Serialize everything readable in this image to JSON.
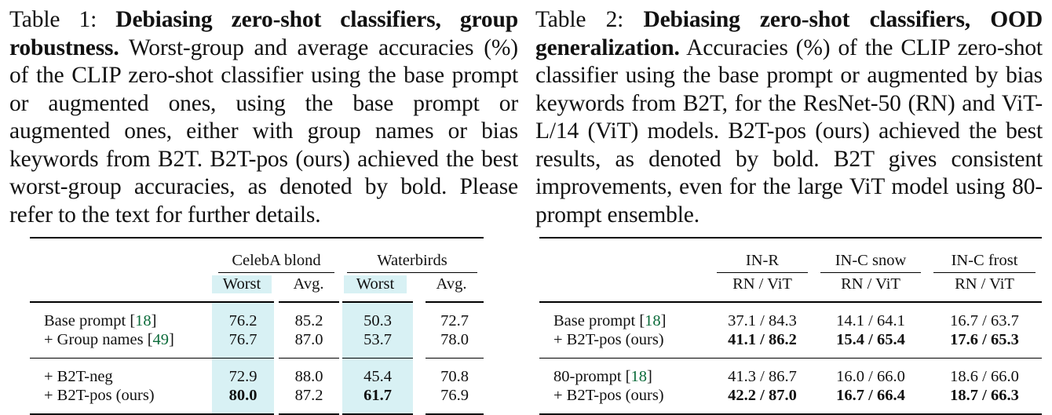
{
  "table1": {
    "caption_label": "Table 1:",
    "caption_title": "Debiasing zero-shot classifiers, group robustness.",
    "caption_body": "Worst-group and average accuracies (%) of the CLIP zero-shot classifier using the base prompt or augmented ones, using the base prompt or augmented ones, either with group names or bias keywords from B2T. B2T-pos (ours) achieved the best worst-group accuracies, as denoted by bold. Please refer to the text for further details.",
    "groups": [
      "CelebA blond",
      "Waterbirds"
    ],
    "subheaders": [
      "Worst",
      "Avg.",
      "Worst",
      "Avg."
    ],
    "rows": [
      {
        "label": "Base prompt [",
        "cite": "18",
        "label_end": "]",
        "values": [
          "76.2",
          "85.2",
          "50.3",
          "72.7"
        ]
      },
      {
        "label": "+ Group names [",
        "cite": "49",
        "label_end": "]",
        "values": [
          "76.7",
          "87.0",
          "53.7",
          "78.0"
        ]
      },
      {
        "label": "+ B2T-neg",
        "values": [
          "72.9",
          "88.0",
          "45.4",
          "70.8"
        ]
      },
      {
        "label": "+ B2T-pos (ours)",
        "values": [
          "80.0",
          "87.2",
          "61.7",
          "76.9"
        ]
      }
    ]
  },
  "table2": {
    "caption_label": "Table 2:",
    "caption_title": "Debiasing zero-shot classifiers, OOD generalization.",
    "caption_body": "Accuracies (%) of the CLIP zero-shot classifier using the base prompt or augmented by bias keywords from B2T, for the ResNet-50 (RN) and ViT-L/14 (ViT) models. B2T-pos (ours) achieved the best results, as denoted by bold. B2T gives consistent improvements, even for the large ViT model using 80-prompt ensemble.",
    "groups": [
      "IN-R",
      "IN-C snow",
      "IN-C frost"
    ],
    "subheaders": [
      "RN / ViT",
      "RN / ViT",
      "RN / ViT"
    ],
    "rows": [
      {
        "label": "Base prompt [",
        "cite": "18",
        "label_end": "]",
        "values": [
          "37.1 / 84.3",
          "14.1 / 64.1",
          "16.7 / 63.7"
        ]
      },
      {
        "label": "+ B2T-pos (ours)",
        "values": [
          "41.1 / 86.2",
          "15.4 / 65.4",
          "17.6 / 65.3"
        ]
      },
      {
        "label": "80-prompt [",
        "cite": "18",
        "label_end": "]",
        "values": [
          "41.3 / 86.7",
          "16.0 / 66.0",
          "18.6 / 66.0"
        ]
      },
      {
        "label": "+ B2T-pos (ours)",
        "values": [
          "42.2 / 87.0",
          "16.7 / 66.4",
          "18.7 / 66.3"
        ]
      }
    ]
  }
}
